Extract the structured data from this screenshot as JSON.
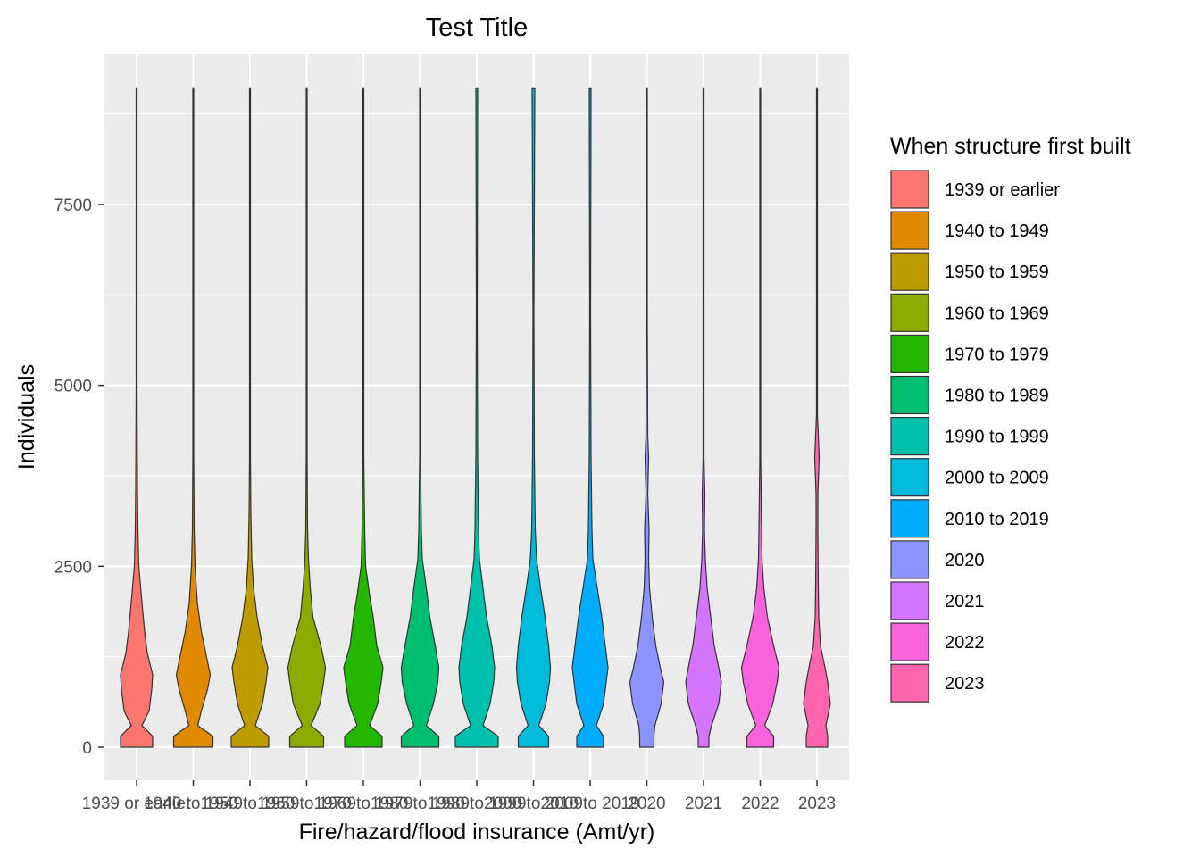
{
  "chart_data": {
    "type": "violin",
    "title": "Test Title",
    "xlabel": "Fire/hazard/flood insurance (Amt/yr)",
    "ylabel": "Individuals",
    "ylim": [
      -450,
      9300
    ],
    "yticks": [
      0,
      2500,
      5000,
      7500
    ],
    "grid": true,
    "legend": {
      "title": "When structure first built",
      "position": "right"
    },
    "categories": [
      "1939 or earlier",
      "1940 to 1949",
      "1950 to 1959",
      "1960 to 1969",
      "1970 to 1979",
      "1980 to 1989",
      "1990 to 1999",
      "2000 to 2009",
      "2010 to 2019",
      "2020",
      "2021",
      "2022",
      "2023"
    ],
    "colors": [
      "#F8766D",
      "#E18A00",
      "#BE9C00",
      "#8CAB00",
      "#24B700",
      "#00BE70",
      "#00C1AB",
      "#00BBDA",
      "#00ACFC",
      "#8B93FF",
      "#D575FE",
      "#F962DD",
      "#FF65AC"
    ],
    "series": [
      {
        "name": "1939 or earlier",
        "profile": [
          [
            0,
            36
          ],
          [
            150,
            36
          ],
          [
            300,
            12
          ],
          [
            500,
            28
          ],
          [
            800,
            34
          ],
          [
            1000,
            36
          ],
          [
            1300,
            24
          ],
          [
            1600,
            18
          ],
          [
            2000,
            12
          ],
          [
            2500,
            5
          ],
          [
            3000,
            3
          ],
          [
            3600,
            2
          ],
          [
            5000,
            1
          ],
          [
            6200,
            1
          ],
          [
            7500,
            1
          ],
          [
            9100,
            1
          ]
        ]
      },
      {
        "name": "1940 to 1949",
        "profile": [
          [
            0,
            44
          ],
          [
            150,
            44
          ],
          [
            300,
            10
          ],
          [
            500,
            18
          ],
          [
            800,
            32
          ],
          [
            1000,
            38
          ],
          [
            1300,
            28
          ],
          [
            1600,
            18
          ],
          [
            2000,
            9
          ],
          [
            2500,
            4
          ],
          [
            3000,
            2
          ],
          [
            4000,
            1
          ],
          [
            6000,
            1
          ],
          [
            9100,
            1
          ]
        ]
      },
      {
        "name": "1950 to 1959",
        "profile": [
          [
            0,
            42
          ],
          [
            150,
            42
          ],
          [
            300,
            12
          ],
          [
            600,
            28
          ],
          [
            900,
            36
          ],
          [
            1100,
            40
          ],
          [
            1400,
            28
          ],
          [
            1800,
            16
          ],
          [
            2200,
            8
          ],
          [
            2600,
            4
          ],
          [
            3200,
            2
          ],
          [
            4000,
            1
          ],
          [
            6000,
            1
          ],
          [
            9100,
            1
          ]
        ]
      },
      {
        "name": "1960 to 1969",
        "profile": [
          [
            0,
            38
          ],
          [
            150,
            38
          ],
          [
            300,
            10
          ],
          [
            600,
            30
          ],
          [
            900,
            38
          ],
          [
            1100,
            42
          ],
          [
            1400,
            32
          ],
          [
            1800,
            14
          ],
          [
            2200,
            8
          ],
          [
            2600,
            4
          ],
          [
            3000,
            2
          ],
          [
            4000,
            1
          ],
          [
            6000,
            1
          ],
          [
            9100,
            1
          ]
        ]
      },
      {
        "name": "1970 to 1979",
        "profile": [
          [
            0,
            42
          ],
          [
            150,
            42
          ],
          [
            300,
            14
          ],
          [
            600,
            32
          ],
          [
            900,
            40
          ],
          [
            1100,
            44
          ],
          [
            1400,
            30
          ],
          [
            1800,
            22
          ],
          [
            2100,
            14
          ],
          [
            2500,
            5
          ],
          [
            3000,
            3
          ],
          [
            4000,
            1
          ],
          [
            6000,
            1
          ],
          [
            9100,
            1
          ]
        ]
      },
      {
        "name": "1980 to 1989",
        "profile": [
          [
            0,
            42
          ],
          [
            150,
            42
          ],
          [
            300,
            14
          ],
          [
            600,
            30
          ],
          [
            900,
            40
          ],
          [
            1100,
            42
          ],
          [
            1400,
            34
          ],
          [
            1800,
            22
          ],
          [
            2200,
            14
          ],
          [
            2600,
            5
          ],
          [
            3000,
            3
          ],
          [
            4000,
            1
          ],
          [
            6000,
            1
          ],
          [
            9100,
            1
          ]
        ]
      },
      {
        "name": "1990 to 1999",
        "profile": [
          [
            0,
            48
          ],
          [
            150,
            48
          ],
          [
            300,
            14
          ],
          [
            600,
            30
          ],
          [
            900,
            38
          ],
          [
            1100,
            40
          ],
          [
            1400,
            34
          ],
          [
            1800,
            22
          ],
          [
            2200,
            14
          ],
          [
            2600,
            6
          ],
          [
            3000,
            4
          ],
          [
            4000,
            2
          ],
          [
            6000,
            1
          ],
          [
            9100,
            2
          ]
        ]
      },
      {
        "name": "2000 to 2009",
        "profile": [
          [
            0,
            34
          ],
          [
            150,
            34
          ],
          [
            300,
            12
          ],
          [
            600,
            28
          ],
          [
            900,
            36
          ],
          [
            1100,
            38
          ],
          [
            1400,
            34
          ],
          [
            1800,
            26
          ],
          [
            2200,
            16
          ],
          [
            2600,
            7
          ],
          [
            3000,
            4
          ],
          [
            3500,
            3
          ],
          [
            4000,
            2
          ],
          [
            6000,
            1
          ],
          [
            9100,
            3
          ]
        ]
      },
      {
        "name": "2010 to 2019",
        "profile": [
          [
            0,
            30
          ],
          [
            150,
            30
          ],
          [
            300,
            14
          ],
          [
            600,
            30
          ],
          [
            900,
            36
          ],
          [
            1100,
            40
          ],
          [
            1400,
            34
          ],
          [
            1800,
            26
          ],
          [
            2200,
            16
          ],
          [
            2600,
            6
          ],
          [
            3000,
            4
          ],
          [
            3500,
            3
          ],
          [
            4000,
            2
          ],
          [
            6000,
            1
          ],
          [
            9100,
            2
          ]
        ]
      },
      {
        "name": "2020",
        "profile": [
          [
            0,
            16
          ],
          [
            150,
            16
          ],
          [
            300,
            18
          ],
          [
            600,
            32
          ],
          [
            900,
            38
          ],
          [
            1100,
            30
          ],
          [
            1400,
            20
          ],
          [
            1800,
            12
          ],
          [
            2200,
            6
          ],
          [
            2600,
            4
          ],
          [
            3000,
            5
          ],
          [
            3500,
            2
          ],
          [
            4000,
            4
          ],
          [
            4300,
            2
          ],
          [
            6000,
            1
          ],
          [
            9100,
            1
          ]
        ]
      },
      {
        "name": "2021",
        "profile": [
          [
            0,
            12
          ],
          [
            150,
            12
          ],
          [
            300,
            18
          ],
          [
            600,
            34
          ],
          [
            900,
            40
          ],
          [
            1100,
            34
          ],
          [
            1400,
            24
          ],
          [
            1800,
            16
          ],
          [
            2200,
            8
          ],
          [
            2600,
            4
          ],
          [
            3000,
            2
          ],
          [
            3500,
            3
          ],
          [
            4000,
            1
          ],
          [
            6000,
            1
          ],
          [
            9100,
            1
          ]
        ]
      },
      {
        "name": "2022",
        "profile": [
          [
            0,
            30
          ],
          [
            150,
            30
          ],
          [
            300,
            10
          ],
          [
            600,
            28
          ],
          [
            900,
            38
          ],
          [
            1100,
            42
          ],
          [
            1400,
            30
          ],
          [
            1800,
            16
          ],
          [
            2200,
            8
          ],
          [
            2600,
            4
          ],
          [
            3000,
            3
          ],
          [
            4000,
            1
          ],
          [
            6000,
            1
          ],
          [
            9100,
            1
          ]
        ]
      },
      {
        "name": "2023",
        "profile": [
          [
            0,
            24
          ],
          [
            150,
            24
          ],
          [
            300,
            20
          ],
          [
            600,
            30
          ],
          [
            900,
            24
          ],
          [
            1100,
            18
          ],
          [
            1400,
            8
          ],
          [
            1800,
            4
          ],
          [
            2200,
            3
          ],
          [
            3000,
            2
          ],
          [
            3500,
            2
          ],
          [
            4000,
            5
          ],
          [
            4300,
            3
          ],
          [
            4600,
            1
          ],
          [
            6000,
            1
          ],
          [
            9100,
            1
          ]
        ]
      }
    ]
  }
}
